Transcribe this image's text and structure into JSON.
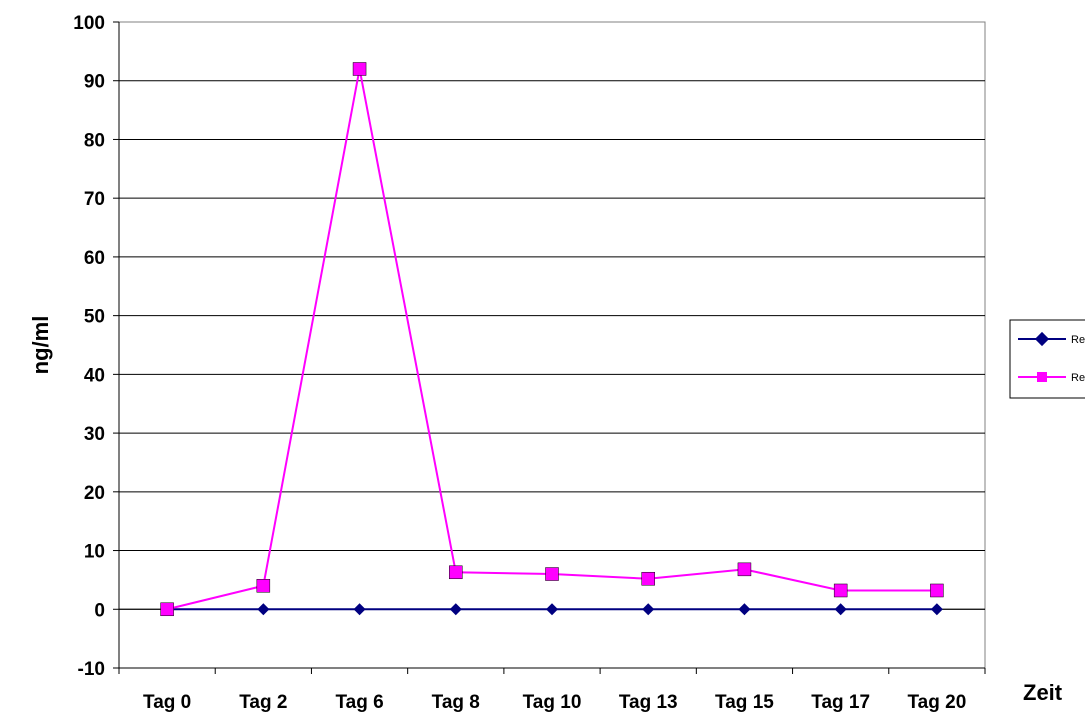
{
  "chart_data": {
    "type": "line",
    "title": "",
    "xlabel": "Zeit",
    "ylabel": "ng/ml",
    "categories": [
      "Tag 0",
      "Tag 2",
      "Tag 6",
      "Tag 8",
      "Tag 10",
      "Tag 13",
      "Tag 15",
      "Tag 17",
      "Tag 20"
    ],
    "y_ticks": [
      -10,
      0,
      10,
      20,
      30,
      40,
      50,
      60,
      70,
      80,
      90,
      100
    ],
    "ylim": [
      -10,
      100
    ],
    "grid": "horizontal",
    "legend_position": "right",
    "series": [
      {
        "name": "Re",
        "color": "#000080",
        "marker": "diamond",
        "values": [
          0,
          0,
          0,
          0,
          0,
          0,
          0,
          0,
          0
        ]
      },
      {
        "name": "Re",
        "color": "#FF00FF",
        "marker": "square",
        "values": [
          0,
          4,
          92,
          6.3,
          6,
          5.2,
          6.8,
          3.2,
          3.2
        ]
      }
    ]
  }
}
